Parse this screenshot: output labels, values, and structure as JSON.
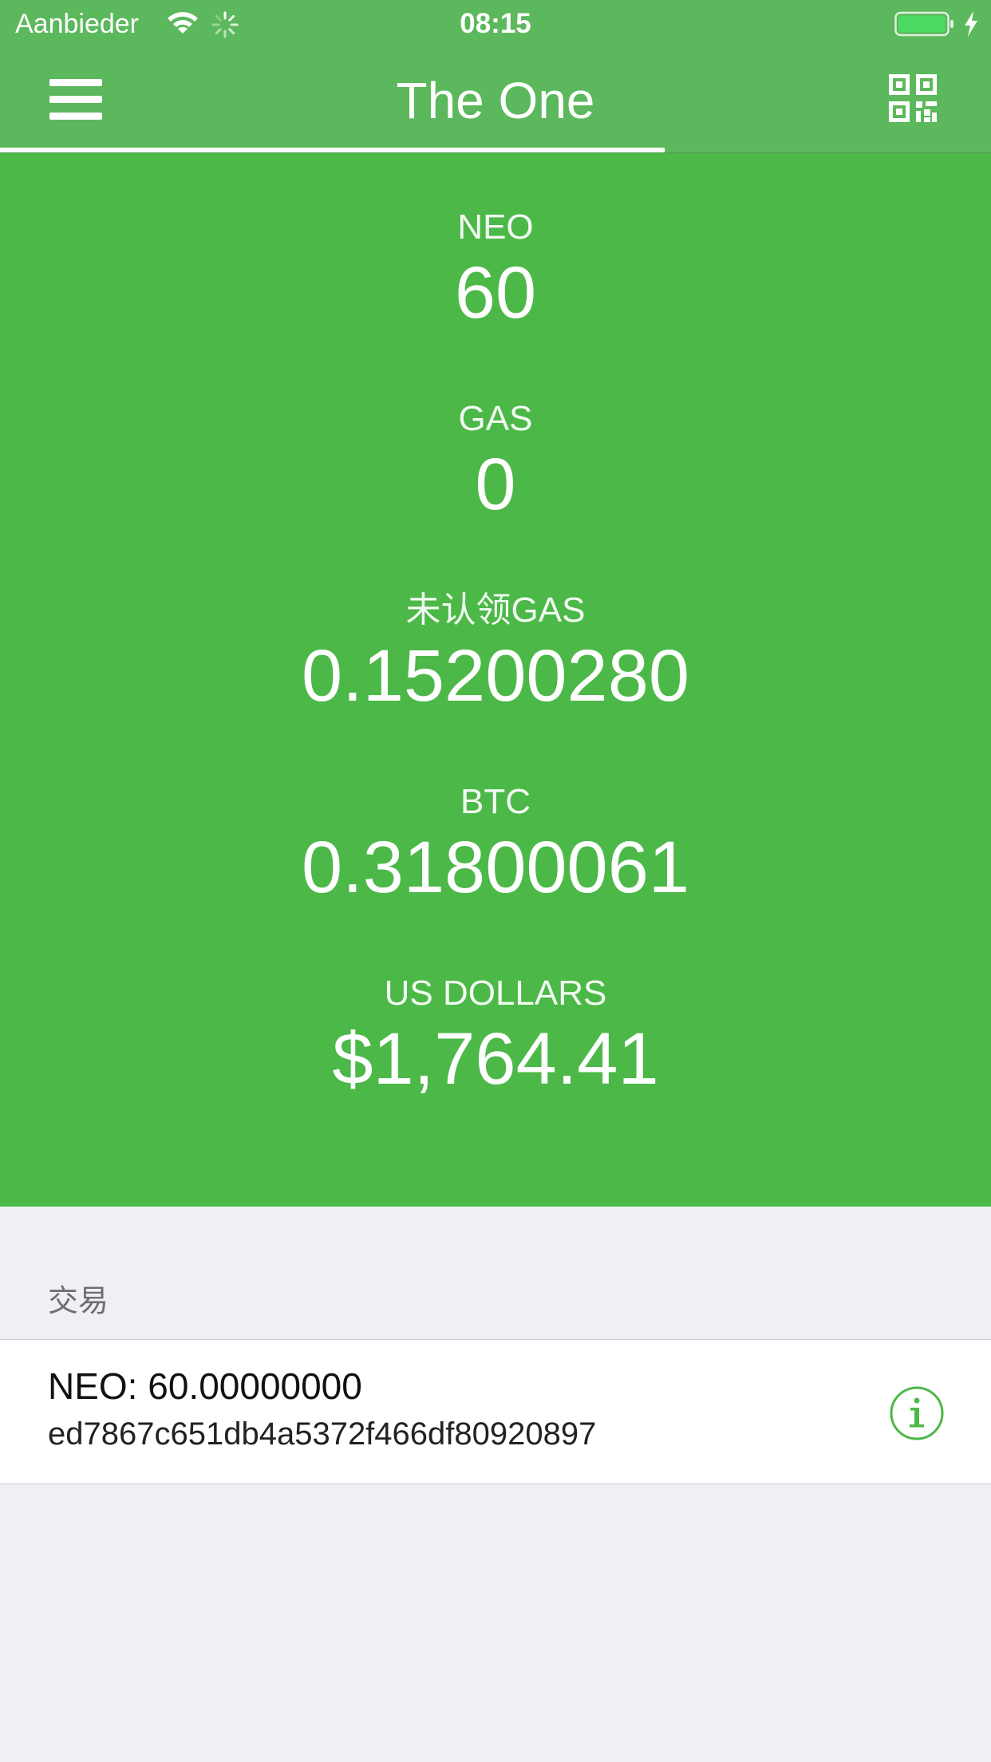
{
  "status_bar": {
    "carrier": "Aanbieder",
    "time": "08:15",
    "icons": [
      "wifi-icon",
      "activity-icon",
      "battery-icon",
      "charging-icon"
    ]
  },
  "nav": {
    "title": "The One",
    "left_icon": "menu-icon",
    "right_icon": "qr-code-icon"
  },
  "balances": [
    {
      "label": "NEO",
      "value": "60"
    },
    {
      "label": "GAS",
      "value": "0"
    },
    {
      "label": "未认领GAS",
      "value": "0.15200280"
    },
    {
      "label": "BTC",
      "value": "0.31800061"
    },
    {
      "label": "US DOLLARS",
      "value": "$1,764.41"
    }
  ],
  "transactions": {
    "header": "交易",
    "items": [
      {
        "amount": "NEO: 60.00000000",
        "hash": "ed7867c651db4a5372f466df80920897",
        "icon": "info-icon"
      }
    ]
  },
  "colors": {
    "header_bg": "#5cb85c",
    "balances_bg": "#4cb848",
    "page_bg": "#efeff4",
    "accent": "#4cb848"
  }
}
